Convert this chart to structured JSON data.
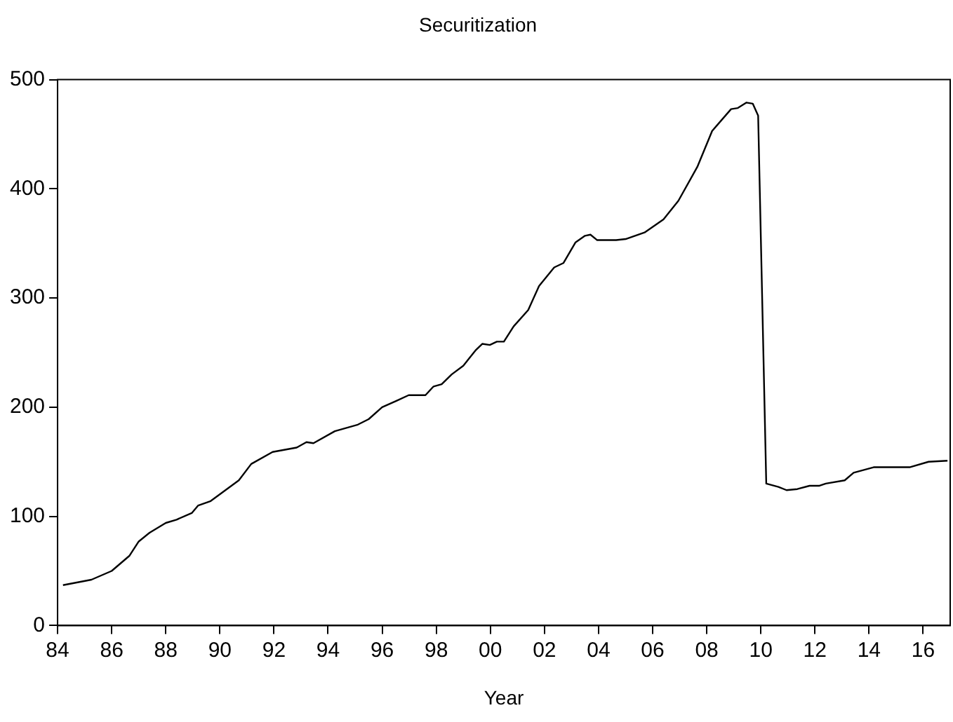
{
  "chart_data": {
    "type": "line",
    "title": "Securitization",
    "xlabel": "Year",
    "x": [
      1984.2,
      1985.25,
      1986.0,
      1986.66,
      1987.0,
      1987.4,
      1988.0,
      1988.4,
      1988.96,
      1989.2,
      1989.66,
      1990.7,
      1991.16,
      1991.95,
      1992.84,
      1993.2,
      1993.46,
      1994.25,
      1995.1,
      1995.5,
      1996.0,
      1996.54,
      1996.98,
      1997.6,
      1997.9,
      1998.2,
      1998.57,
      1999.0,
      1999.45,
      1999.7,
      1999.98,
      2000.24,
      2000.5,
      2000.86,
      2001.4,
      2001.8,
      2002.36,
      2002.7,
      2003.15,
      2003.5,
      2003.7,
      2003.95,
      2004.65,
      2005.0,
      2005.7,
      2006.4,
      2006.95,
      2007.65,
      2008.2,
      2008.9,
      2009.15,
      2009.47,
      2009.7,
      2009.9,
      2010.2,
      2010.65,
      2010.95,
      2011.35,
      2011.8,
      2012.15,
      2012.4,
      2013.1,
      2013.43,
      2014.17,
      2014.88,
      2015.5,
      2016.2,
      2016.9
    ],
    "series": [
      {
        "color": "#000000",
        "values": [
          37,
          42,
          50,
          64,
          77,
          85,
          94,
          97,
          103,
          110,
          114,
          133,
          148,
          159,
          163,
          168,
          167,
          178,
          184,
          189,
          200,
          206,
          211,
          211,
          219,
          221,
          230,
          238,
          252,
          258,
          257,
          260,
          260,
          274,
          289,
          311,
          328,
          332,
          351,
          357,
          358,
          353,
          353,
          354,
          360,
          372,
          389,
          420,
          453,
          473,
          474,
          479,
          478,
          467,
          130,
          127,
          124,
          125,
          128,
          128,
          130,
          133,
          140,
          145,
          145,
          145,
          150,
          151
        ]
      }
    ],
    "xlim": [
      1984,
      2017
    ],
    "xticks": [
      {
        "value": 1984,
        "label": "84"
      },
      {
        "value": 1986,
        "label": "86"
      },
      {
        "value": 1988,
        "label": "88"
      },
      {
        "value": 1990,
        "label": "90"
      },
      {
        "value": 1992,
        "label": "92"
      },
      {
        "value": 1994,
        "label": "94"
      },
      {
        "value": 1996,
        "label": "96"
      },
      {
        "value": 1998,
        "label": "98"
      },
      {
        "value": 2000,
        "label": "00"
      },
      {
        "value": 2002,
        "label": "02"
      },
      {
        "value": 2004,
        "label": "04"
      },
      {
        "value": 2006,
        "label": "06"
      },
      {
        "value": 2008,
        "label": "08"
      },
      {
        "value": 2010,
        "label": "10"
      },
      {
        "value": 2012,
        "label": "12"
      },
      {
        "value": 2014,
        "label": "14"
      },
      {
        "value": 2016,
        "label": "16"
      }
    ],
    "ylim": [
      0,
      500
    ],
    "yticks": [
      0,
      100,
      200,
      300,
      400,
      500
    ],
    "grid": false,
    "legend": false,
    "marker": "none",
    "line_style": "solid"
  }
}
